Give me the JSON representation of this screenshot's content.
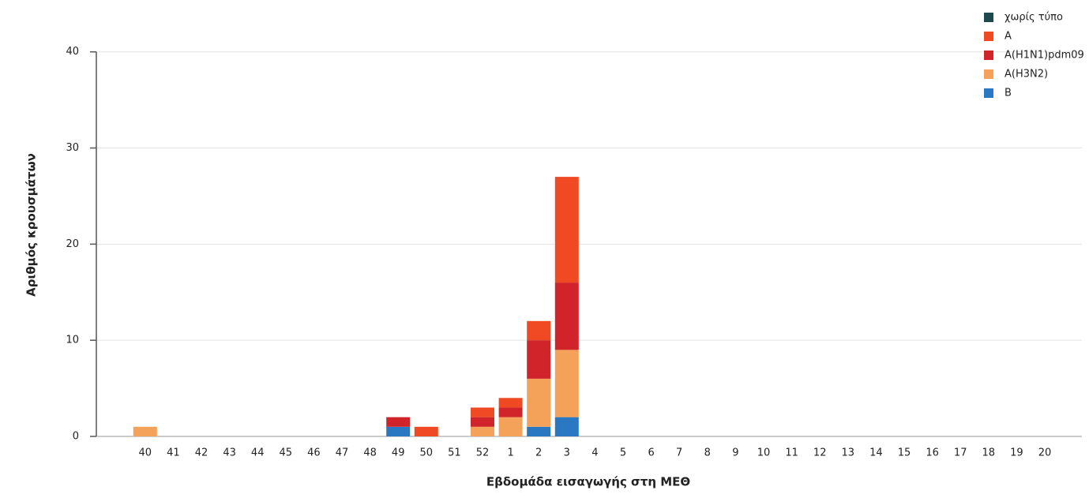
{
  "chart_data": {
    "type": "stacked_bar",
    "y_axis_label": "Αριθμός κρουσμάτων",
    "x_axis_label": "Εβδομάδα εισαγωγής στη ΜΕΘ",
    "categories": [
      "40",
      "41",
      "42",
      "43",
      "44",
      "45",
      "46",
      "47",
      "48",
      "49",
      "50",
      "51",
      "52",
      "1",
      "2",
      "3",
      "4",
      "5",
      "6",
      "7",
      "8",
      "9",
      "10",
      "11",
      "12",
      "13",
      "14",
      "15",
      "16",
      "17",
      "18",
      "19",
      "20"
    ],
    "series": [
      {
        "name": "χωρίς τύπο",
        "color": "#1d4a4f",
        "values": [
          0,
          0,
          0,
          0,
          0,
          0,
          0,
          0,
          0,
          0,
          0,
          0,
          0,
          0,
          0,
          0,
          0,
          0,
          0,
          0,
          0,
          0,
          0,
          0,
          0,
          0,
          0,
          0,
          0,
          0,
          0,
          0,
          0
        ]
      },
      {
        "name": "A",
        "color": "#ef4a24",
        "values": [
          0,
          0,
          0,
          0,
          0,
          0,
          0,
          0,
          0,
          0,
          1,
          0,
          1,
          1,
          2,
          11,
          0,
          0,
          0,
          0,
          0,
          0,
          0,
          0,
          0,
          0,
          0,
          0,
          0,
          0,
          0,
          0,
          0
        ]
      },
      {
        "name": "A(H1N1)pdm09",
        "color": "#d0232a",
        "values": [
          0,
          0,
          0,
          0,
          0,
          0,
          0,
          0,
          0,
          1,
          0,
          0,
          1,
          1,
          4,
          7,
          0,
          0,
          0,
          0,
          0,
          0,
          0,
          0,
          0,
          0,
          0,
          0,
          0,
          0,
          0,
          0,
          0
        ]
      },
      {
        "name": "A(H3N2)",
        "color": "#f4a25a",
        "values": [
          1,
          0,
          0,
          0,
          0,
          0,
          0,
          0,
          0,
          0,
          0,
          0,
          1,
          2,
          5,
          7,
          0,
          0,
          0,
          0,
          0,
          0,
          0,
          0,
          0,
          0,
          0,
          0,
          0,
          0,
          0,
          0,
          0
        ]
      },
      {
        "name": "B",
        "color": "#2a78c2",
        "values": [
          0,
          0,
          0,
          0,
          0,
          0,
          0,
          0,
          0,
          1,
          0,
          0,
          0,
          0,
          1,
          2,
          0,
          0,
          0,
          0,
          0,
          0,
          0,
          0,
          0,
          0,
          0,
          0,
          0,
          0,
          0,
          0,
          0
        ]
      }
    ],
    "ylim": [
      0,
      44
    ],
    "yticks": [
      0,
      10,
      20,
      30,
      40
    ],
    "grid": true,
    "legend": "top-right"
  }
}
